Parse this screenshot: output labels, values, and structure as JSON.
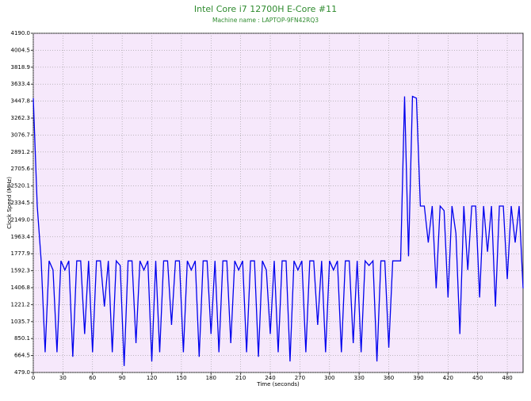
{
  "chart_data": {
    "type": "line",
    "title": "Intel Core i7 12700H E-Core #11",
    "subtitle": "Machine name : LAPTOP-9FN42RQ3",
    "x_label": "Time (seconds)",
    "y_label": "Clock Speed (MHz)",
    "grid": true,
    "xlim": [
      0,
      496
    ],
    "xticks": [
      0,
      30,
      60,
      90,
      120,
      150,
      180,
      210,
      240,
      270,
      300,
      330,
      360,
      390,
      420,
      450,
      480
    ],
    "ylim": [
      479,
      4190
    ],
    "yticks": [
      {
        "value": 479,
        "label": "479.0"
      },
      664.5,
      850.1,
      1035.7,
      1221.2,
      1406.8,
      1592.3,
      1777.9,
      1963.4,
      {
        "value": 2149,
        "label": "2149.0"
      },
      2334.5,
      2520.1,
      2705.6,
      2891.2,
      3076.7,
      3262.3,
      3447.8,
      3633.4,
      3818.9,
      4004.5,
      {
        "value": 4190,
        "label": "4190.0"
      }
    ],
    "x": [
      0,
      4,
      8,
      12,
      16,
      20,
      24,
      28,
      32,
      36,
      40,
      44,
      48,
      52,
      56,
      60,
      64,
      68,
      72,
      76,
      80,
      84,
      88,
      92,
      96,
      100,
      104,
      108,
      112,
      116,
      120,
      124,
      128,
      132,
      136,
      140,
      144,
      148,
      152,
      156,
      160,
      164,
      168,
      172,
      176,
      180,
      184,
      188,
      192,
      196,
      200,
      204,
      208,
      212,
      216,
      220,
      224,
      228,
      232,
      236,
      240,
      244,
      248,
      252,
      256,
      260,
      264,
      268,
      272,
      276,
      280,
      284,
      288,
      292,
      296,
      300,
      304,
      308,
      312,
      316,
      320,
      324,
      328,
      332,
      336,
      340,
      344,
      348,
      352,
      356,
      360,
      364,
      368,
      372,
      376,
      380,
      384,
      388,
      392,
      396,
      400,
      404,
      408,
      412,
      416,
      420,
      424,
      428,
      432,
      436,
      440,
      444,
      448,
      452,
      456,
      460,
      464,
      468,
      472,
      476,
      480,
      484,
      488,
      492,
      496
    ],
    "series": [
      {
        "name": "Clock Speed",
        "color": "#0000ee",
        "values": [
          3480,
          2300,
          1700,
          700,
          1700,
          1600,
          700,
          1700,
          1600,
          1700,
          650,
          1700,
          1700,
          900,
          1700,
          700,
          1700,
          1700,
          1200,
          1700,
          700,
          1700,
          1650,
          550,
          1700,
          1700,
          800,
          1700,
          1600,
          1700,
          600,
          1700,
          700,
          1700,
          1700,
          1000,
          1700,
          1700,
          700,
          1700,
          1600,
          1700,
          650,
          1700,
          1700,
          900,
          1700,
          700,
          1700,
          1700,
          800,
          1700,
          1600,
          1700,
          700,
          1700,
          1700,
          650,
          1700,
          1600,
          900,
          1700,
          700,
          1700,
          1700,
          600,
          1700,
          1600,
          1700,
          700,
          1700,
          1700,
          1000,
          1700,
          700,
          1700,
          1600,
          1700,
          700,
          1700,
          1700,
          800,
          1700,
          700,
          1700,
          1650,
          1700,
          600,
          1700,
          1700,
          750,
          1700,
          1700,
          1700,
          3500,
          1750,
          3500,
          3480,
          2300,
          2300,
          1900,
          2300,
          1400,
          2300,
          2250,
          1300,
          2300,
          2000,
          900,
          2300,
          1600,
          2300,
          2300,
          1300,
          2300,
          1800,
          2300,
          1200,
          2300,
          2300,
          1500,
          2300,
          1900,
          2300,
          1400
        ]
      }
    ]
  }
}
